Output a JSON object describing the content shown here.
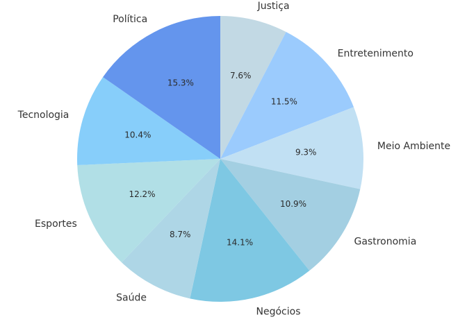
{
  "chart_data": {
    "type": "pie",
    "title": "",
    "start_angle_deg": 90,
    "direction": "clockwise",
    "legend": "none",
    "slices": [
      {
        "label": "Justiça",
        "value": 7.6,
        "pct_text": "7.6%",
        "color": "#c2d9e4"
      },
      {
        "label": "Entretenimento",
        "value": 11.5,
        "pct_text": "11.5%",
        "color": "#9bcbfd"
      },
      {
        "label": "Meio Ambiente",
        "value": 9.3,
        "pct_text": "9.3%",
        "color": "#c1e0f3"
      },
      {
        "label": "Gastronomia",
        "value": 10.9,
        "pct_text": "10.9%",
        "color": "#a3cfe2"
      },
      {
        "label": "Negócios",
        "value": 14.1,
        "pct_text": "14.1%",
        "color": "#7ec8e3"
      },
      {
        "label": "Saúde",
        "value": 8.7,
        "pct_text": "8.7%",
        "color": "#aed6e6"
      },
      {
        "label": "Esportes",
        "value": 12.2,
        "pct_text": "12.2%",
        "color": "#b1dfe6"
      },
      {
        "label": "Tecnologia",
        "value": 10.4,
        "pct_text": "10.4%",
        "color": "#87cefa"
      },
      {
        "label": "Política",
        "value": 15.3,
        "pct_text": "15.3%",
        "color": "#6495ed"
      }
    ]
  }
}
